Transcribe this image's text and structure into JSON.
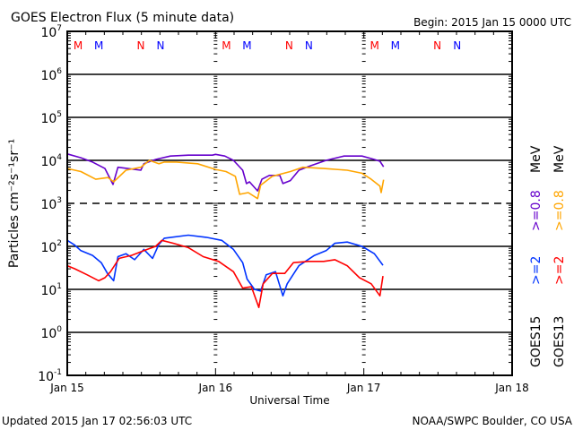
{
  "chart_data": {
    "type": "line",
    "title": "GOES Electron Flux (5 minute data)",
    "begin_label": "Begin: 2015 Jan 15 0000 UTC",
    "xlabel": "Universal Time",
    "ylabel": "Particles cm⁻²s⁻¹sr⁻¹",
    "x_unit": "hours since 2015 Jan 15 0000 UTC",
    "xlim": [
      0,
      72
    ],
    "x_ticks": [
      {
        "h": 0,
        "label": "Jan 15"
      },
      {
        "h": 24,
        "label": "Jan 16"
      },
      {
        "h": 48,
        "label": "Jan 17"
      },
      {
        "h": 72,
        "label": "Jan 18"
      }
    ],
    "y_scale": "log",
    "ylim_log10": [
      -1,
      7
    ],
    "y_ticks": [
      {
        "base": "10",
        "exp": "7"
      },
      {
        "base": "10",
        "exp": "6"
      },
      {
        "base": "10",
        "exp": "5"
      },
      {
        "base": "10",
        "exp": "4"
      },
      {
        "base": "10",
        "exp": "3"
      },
      {
        "base": "10",
        "exp": "2"
      },
      {
        "base": "10",
        "exp": "1"
      },
      {
        "base": "10",
        "exp": "0"
      },
      {
        "base": "10",
        "exp": "-1"
      }
    ],
    "dashed_level_log10": 3,
    "markers": [
      {
        "label": "M",
        "color": "#ff0000",
        "hours": [
          1.75,
          25.75,
          49.75
        ]
      },
      {
        "label": "M",
        "color": "#0000ff",
        "hours": [
          5.1,
          29.1,
          53.1
        ]
      },
      {
        "label": "N",
        "color": "#ff0000",
        "hours": [
          11.9,
          35.9,
          59.9
        ]
      },
      {
        "label": "N",
        "color": "#0000ff",
        "hours": [
          15.1,
          39.1,
          63.1
        ]
      }
    ],
    "series": [
      {
        "name": "GOES15 >=0.8 MeV",
        "color": "#6600cc",
        "points_log10": [
          [
            0,
            4.15
          ],
          [
            2.2,
            4.06
          ],
          [
            4.1,
            3.96
          ],
          [
            6.1,
            3.81
          ],
          [
            7.4,
            3.44
          ],
          [
            8.2,
            3.84
          ],
          [
            10.3,
            3.8
          ],
          [
            11.9,
            3.77
          ],
          [
            12.4,
            3.92
          ],
          [
            14.3,
            4.02
          ],
          [
            16.7,
            4.1
          ],
          [
            19.6,
            4.12
          ],
          [
            23.5,
            4.12
          ],
          [
            24,
            4.14
          ],
          [
            25.5,
            4.1
          ],
          [
            26.9,
            4.0
          ],
          [
            28.4,
            3.77
          ],
          [
            29,
            3.46
          ],
          [
            29.5,
            3.5
          ],
          [
            30.8,
            3.29
          ],
          [
            31.5,
            3.56
          ],
          [
            32.7,
            3.65
          ],
          [
            34.4,
            3.65
          ],
          [
            34.9,
            3.46
          ],
          [
            36.1,
            3.53
          ],
          [
            37.5,
            3.77
          ],
          [
            39.5,
            3.88
          ],
          [
            41.9,
            4.0
          ],
          [
            44.8,
            4.1
          ],
          [
            47.7,
            4.1
          ],
          [
            49.7,
            4.02
          ],
          [
            50.6,
            3.98
          ],
          [
            51.2,
            3.85
          ]
        ]
      },
      {
        "name": "GOES13 >=0.8 MeV",
        "color": "#ffa500",
        "points_log10": [
          [
            0,
            3.81
          ],
          [
            2.2,
            3.74
          ],
          [
            4.6,
            3.56
          ],
          [
            6.6,
            3.6
          ],
          [
            7.5,
            3.5
          ],
          [
            9.5,
            3.77
          ],
          [
            11.9,
            3.84
          ],
          [
            13.3,
            4.0
          ],
          [
            14.8,
            3.92
          ],
          [
            15.7,
            3.96
          ],
          [
            17.7,
            3.96
          ],
          [
            21.1,
            3.92
          ],
          [
            24,
            3.79
          ],
          [
            25.7,
            3.74
          ],
          [
            27.2,
            3.63
          ],
          [
            27.9,
            3.21
          ],
          [
            29.3,
            3.25
          ],
          [
            30.8,
            3.11
          ],
          [
            31.3,
            3.42
          ],
          [
            33.2,
            3.63
          ],
          [
            36.1,
            3.74
          ],
          [
            38.1,
            3.84
          ],
          [
            41.5,
            3.81
          ],
          [
            45.3,
            3.77
          ],
          [
            47.7,
            3.7
          ],
          [
            49.2,
            3.56
          ],
          [
            50.6,
            3.4
          ],
          [
            50.8,
            3.25
          ],
          [
            51.2,
            3.55
          ]
        ]
      },
      {
        "name": "GOES15 >=2 MeV",
        "color": "#0033ff",
        "points_log10": [
          [
            0,
            2.14
          ],
          [
            1.2,
            2.03
          ],
          [
            2.2,
            1.9
          ],
          [
            4.1,
            1.79
          ],
          [
            5.5,
            1.62
          ],
          [
            6.5,
            1.37
          ],
          [
            7.5,
            1.2
          ],
          [
            8.2,
            1.76
          ],
          [
            9.5,
            1.83
          ],
          [
            10.9,
            1.69
          ],
          [
            12.4,
            1.93
          ],
          [
            13.8,
            1.72
          ],
          [
            14.8,
            2.04
          ],
          [
            15.7,
            2.19
          ],
          [
            19.6,
            2.26
          ],
          [
            22.5,
            2.21
          ],
          [
            25,
            2.14
          ],
          [
            26.9,
            1.93
          ],
          [
            28.4,
            1.62
          ],
          [
            29.1,
            1.24
          ],
          [
            30.3,
            1.0
          ],
          [
            31.3,
            0.96
          ],
          [
            32.2,
            1.34
          ],
          [
            33.7,
            1.41
          ],
          [
            34.9,
            0.85
          ],
          [
            35.6,
            1.13
          ],
          [
            37.5,
            1.55
          ],
          [
            40,
            1.79
          ],
          [
            41.9,
            1.9
          ],
          [
            43.3,
            2.07
          ],
          [
            45.3,
            2.1
          ],
          [
            47.7,
            2.0
          ],
          [
            49.7,
            1.83
          ],
          [
            51.1,
            1.56
          ]
        ]
      },
      {
        "name": "GOES13 >=2 MeV",
        "color": "#ff0000",
        "points_log10": [
          [
            0,
            1.55
          ],
          [
            1.2,
            1.48
          ],
          [
            3.2,
            1.34
          ],
          [
            5.1,
            1.2
          ],
          [
            6.1,
            1.27
          ],
          [
            7,
            1.41
          ],
          [
            8.4,
            1.72
          ],
          [
            10.4,
            1.79
          ],
          [
            12.4,
            1.9
          ],
          [
            14.3,
            2.0
          ],
          [
            15.3,
            2.14
          ],
          [
            17.2,
            2.07
          ],
          [
            19.6,
            1.97
          ],
          [
            22,
            1.76
          ],
          [
            24.5,
            1.65
          ],
          [
            26.9,
            1.41
          ],
          [
            28.4,
            1.03
          ],
          [
            29.8,
            1.06
          ],
          [
            31,
            0.58
          ],
          [
            31.7,
            1.13
          ],
          [
            33.2,
            1.37
          ],
          [
            35.2,
            1.37
          ],
          [
            36.6,
            1.62
          ],
          [
            39,
            1.65
          ],
          [
            41.5,
            1.65
          ],
          [
            43.3,
            1.69
          ],
          [
            45.3,
            1.55
          ],
          [
            47.3,
            1.27
          ],
          [
            49.2,
            1.13
          ],
          [
            50.6,
            0.85
          ],
          [
            51.1,
            1.31
          ]
        ]
      }
    ],
    "legend": {
      "placement": "right",
      "columns": [
        {
          "satellite": "GOES15",
          "high": ">=2",
          "high_color": "#0033ff",
          "low": ">=0.8",
          "low_color": "#6600cc",
          "unit": "MeV"
        },
        {
          "satellite": "GOES13",
          "high": ">=2",
          "high_color": "#ff0000",
          "low": ">=0.8",
          "low_color": "#ffa500",
          "unit": "MeV"
        }
      ]
    }
  },
  "footer": {
    "updated": "Updated 2015 Jan 17 02:56:03 UTC",
    "source": "NOAA/SWPC Boulder, CO USA"
  }
}
